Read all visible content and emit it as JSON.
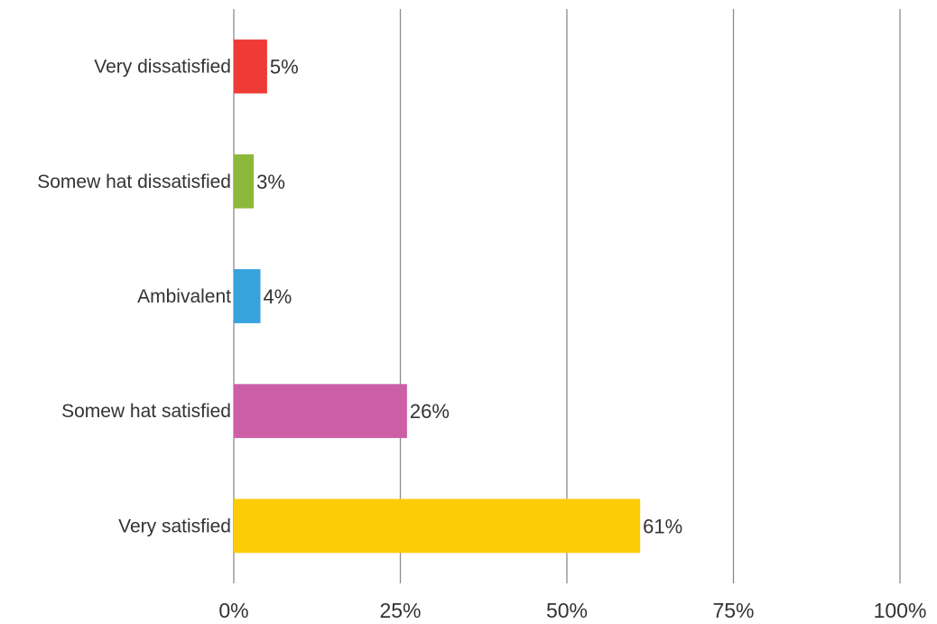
{
  "chart_data": {
    "type": "bar",
    "orientation": "horizontal",
    "categories": [
      "Very dissatisfied",
      "Somew hat dissatisfied",
      "Ambivalent",
      "Somew hat satisfied",
      "Very satisfied"
    ],
    "values": [
      5,
      3,
      4,
      26,
      61
    ],
    "value_labels": [
      "5%",
      "3%",
      "4%",
      "26%",
      "61%"
    ],
    "colors": [
      "#ee3b36",
      "#8db83c",
      "#36a3dd",
      "#cd5fa6",
      "#fdcc08"
    ],
    "xlim": [
      0,
      100
    ],
    "x_ticks": [
      0,
      25,
      50,
      75,
      100
    ],
    "x_tick_labels": [
      "0%",
      "25%",
      "50%",
      "75%",
      "100%"
    ],
    "grid": true,
    "legend": "none",
    "title": "",
    "xlabel": "",
    "ylabel": ""
  }
}
